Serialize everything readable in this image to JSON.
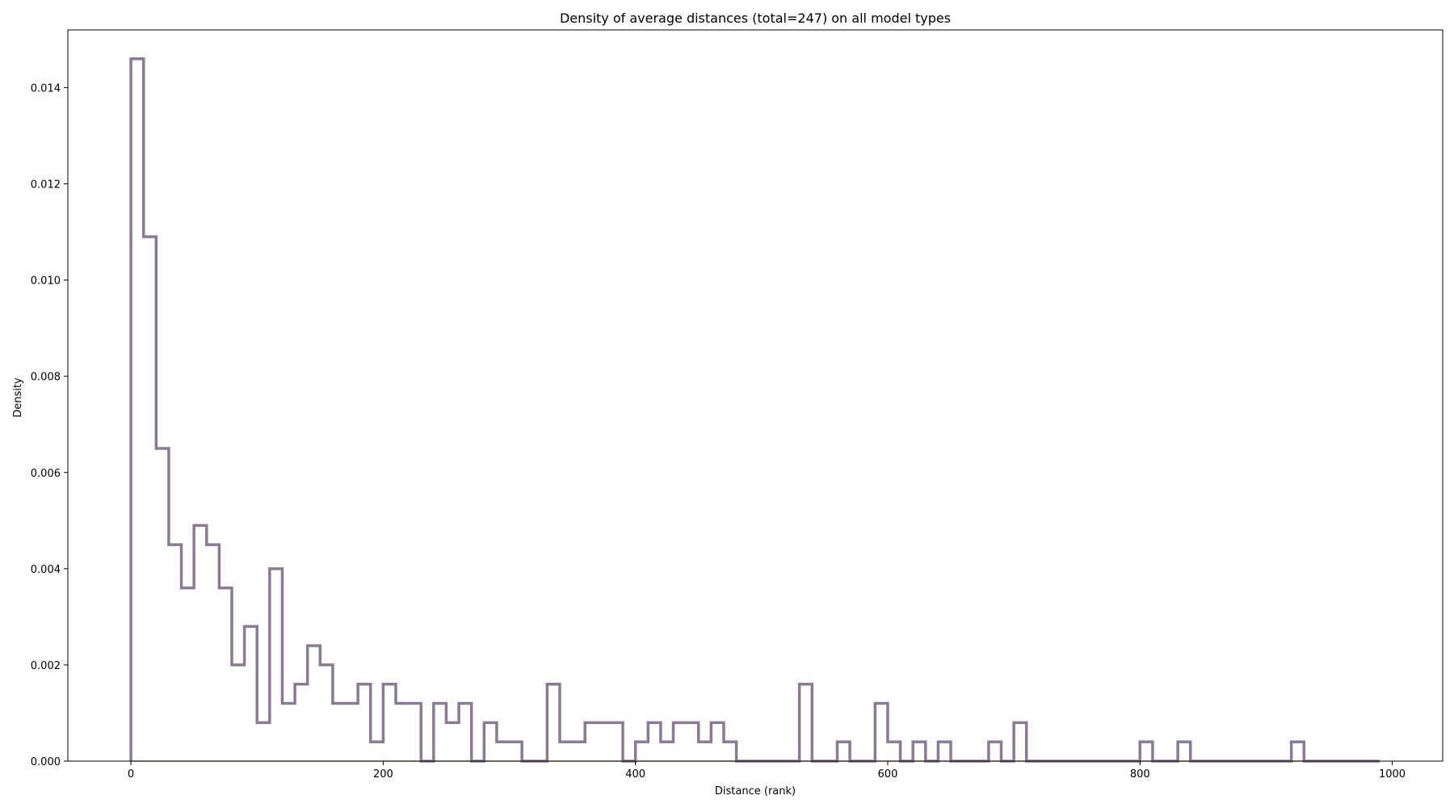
{
  "chart_data": {
    "type": "histogram-step",
    "title": "Density of average distances (total=247) on all model types",
    "xlabel": "Distance (rank)",
    "ylabel": "Density",
    "xlim": [
      -50,
      1040
    ],
    "ylim": [
      0,
      0.0152
    ],
    "xticks": [
      0,
      200,
      400,
      600,
      800,
      1000
    ],
    "yticks": [
      0.0,
      0.002,
      0.004,
      0.006,
      0.008,
      0.01,
      0.012,
      0.014
    ],
    "xtick_labels": [
      "0",
      "200",
      "400",
      "600",
      "800",
      "1000"
    ],
    "ytick_labels": [
      "0.000",
      "0.002",
      "0.004",
      "0.006",
      "0.008",
      "0.010",
      "0.012",
      "0.014"
    ],
    "bin_width": 10,
    "bin_start": 0,
    "series": [
      {
        "color": "#8c7a95",
        "values": [
          0.0146,
          0.0109,
          0.0065,
          0.0045,
          0.0036,
          0.0049,
          0.0045,
          0.0036,
          0.002,
          0.0028,
          0.0008,
          0.004,
          0.0012,
          0.0016,
          0.0024,
          0.002,
          0.0012,
          0.0012,
          0.0016,
          0.0004,
          0.0016,
          0.0012,
          0.0012,
          0.0,
          0.0012,
          0.0008,
          0.0012,
          0.0,
          0.0008,
          0.0004,
          0.0004,
          0.0,
          0.0,
          0.0016,
          0.0004,
          0.0004,
          0.0008,
          0.0008,
          0.0008,
          0.0,
          0.0004,
          0.0008,
          0.0004,
          0.0008,
          0.0008,
          0.0004,
          0.0008,
          0.0004,
          0.0,
          0.0,
          0.0,
          0.0,
          0.0,
          0.0016,
          0.0,
          0.0,
          0.0004,
          0.0,
          0.0,
          0.0012,
          0.0004,
          0.0,
          0.0004,
          0.0,
          0.0004,
          0.0,
          0.0,
          0.0,
          0.0004,
          0.0,
          0.0008,
          0.0,
          0.0,
          0.0,
          0.0,
          0.0,
          0.0,
          0.0,
          0.0,
          0.0,
          0.0004,
          0.0,
          0.0,
          0.0004,
          0.0,
          0.0,
          0.0,
          0.0,
          0.0,
          0.0,
          0.0,
          0.0,
          0.0004,
          0.0,
          0.0,
          0.0,
          0.0,
          0.0,
          0.0
        ]
      }
    ],
    "baseline_line_color": "#d9854f",
    "grid": false
  }
}
